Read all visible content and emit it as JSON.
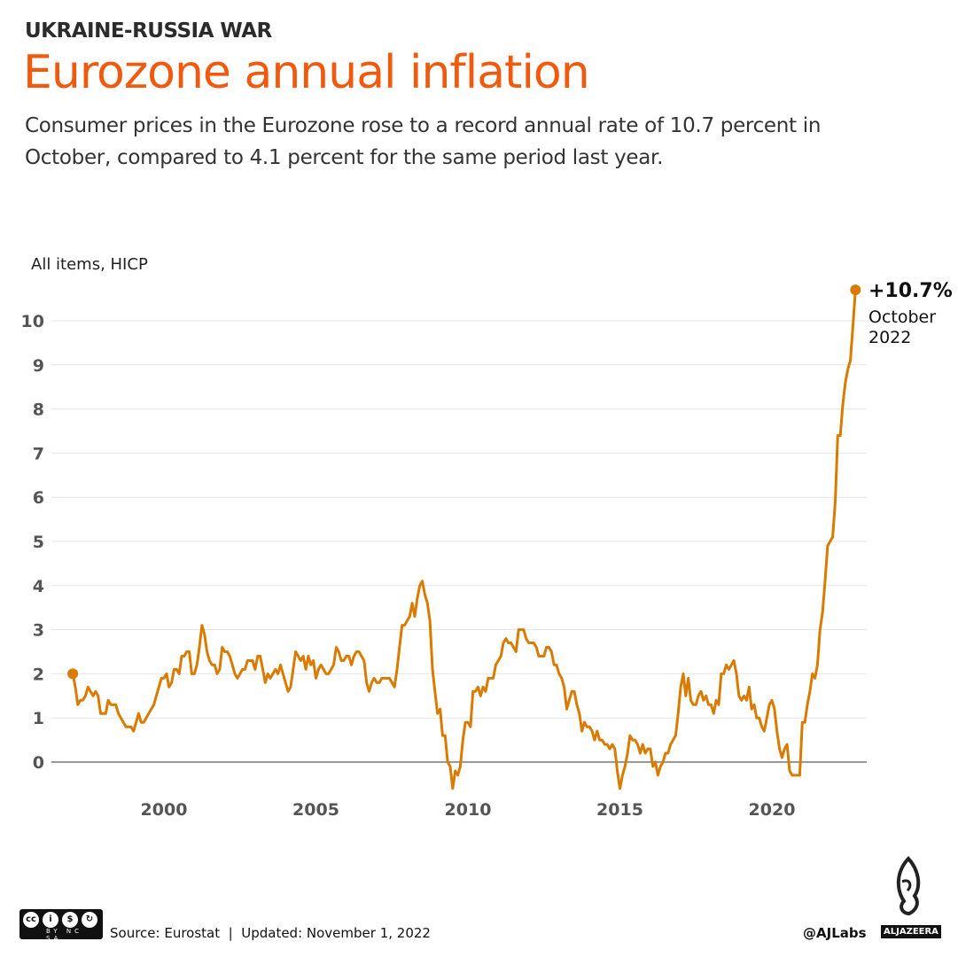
{
  "header": {
    "kicker": "UKRAINE-RUSSIA WAR",
    "title": "Eurozone annual inflation",
    "subtitle": "Consumer prices in the Eurozone rose to a record annual rate of 10.7 percent in October, compared to 4.1 percent for the same period last year."
  },
  "footer": {
    "source": "Source: Eurostat  |  Updated: November 1, 2022",
    "license_icons": [
      "cc",
      "by",
      "nc",
      "sa"
    ],
    "license_labels": "BY NC SA",
    "handle": "@AJLabs",
    "brand": "ALJAZEERA"
  },
  "colors": {
    "title": "#f05a0f",
    "line": "#d97b00",
    "grid": "#e6e6e6",
    "zero": "#999999"
  },
  "chart_data": {
    "type": "line",
    "title": "",
    "ylabel": "All items, HICP",
    "xlabel": "",
    "x_start": "1997-01",
    "x_end": "2022-10",
    "frequency": "monthly",
    "xticks": [
      "2000",
      "2005",
      "2010",
      "2015",
      "2020"
    ],
    "yticks": [
      "0",
      "1",
      "2",
      "3",
      "4",
      "5",
      "6",
      "7",
      "8",
      "9",
      "10"
    ],
    "ylim": [
      -0.7,
      11
    ],
    "grid": true,
    "annotation": {
      "value": "+10.7%",
      "month": "October",
      "year": "2022"
    },
    "series": [
      {
        "values": [
          2.0,
          1.7,
          1.3,
          1.4,
          1.4,
          1.5,
          1.7,
          1.6,
          1.5,
          1.6,
          1.5,
          1.1,
          1.1,
          1.1,
          1.4,
          1.3,
          1.3,
          1.3,
          1.1,
          1.0,
          0.9,
          0.8,
          0.8,
          0.8,
          0.7,
          0.9,
          1.1,
          0.9,
          0.9,
          1.0,
          1.1,
          1.2,
          1.3,
          1.5,
          1.7,
          1.9,
          1.9,
          2.0,
          1.7,
          1.8,
          2.1,
          2.1,
          2.0,
          2.4,
          2.4,
          2.5,
          2.5,
          2.0,
          2.0,
          2.2,
          2.6,
          3.1,
          2.9,
          2.5,
          2.3,
          2.2,
          2.2,
          2.0,
          2.1,
          2.6,
          2.5,
          2.5,
          2.4,
          2.2,
          2.0,
          1.9,
          2.0,
          2.1,
          2.1,
          2.3,
          2.3,
          2.3,
          2.1,
          2.4,
          2.4,
          2.1,
          1.8,
          2.0,
          1.9,
          2.0,
          2.1,
          2.0,
          2.2,
          2.0,
          1.8,
          1.6,
          1.7,
          2.1,
          2.5,
          2.4,
          2.3,
          2.4,
          2.1,
          2.4,
          2.2,
          2.3,
          1.9,
          2.1,
          2.2,
          2.1,
          2.0,
          2.0,
          2.1,
          2.2,
          2.6,
          2.5,
          2.3,
          2.3,
          2.4,
          2.4,
          2.2,
          2.4,
          2.5,
          2.5,
          2.4,
          2.3,
          1.8,
          1.6,
          1.8,
          1.9,
          1.8,
          1.8,
          1.9,
          1.9,
          1.9,
          1.9,
          1.8,
          1.7,
          2.1,
          2.6,
          3.1,
          3.1,
          3.2,
          3.3,
          3.6,
          3.3,
          3.7,
          4.0,
          4.1,
          3.8,
          3.6,
          3.2,
          2.1,
          1.6,
          1.1,
          1.2,
          0.6,
          0.6,
          0.0,
          -0.1,
          -0.6,
          -0.2,
          -0.3,
          -0.1,
          0.5,
          0.9,
          0.9,
          0.8,
          1.6,
          1.6,
          1.7,
          1.5,
          1.7,
          1.6,
          1.9,
          1.9,
          1.9,
          2.2,
          2.3,
          2.4,
          2.7,
          2.8,
          2.7,
          2.7,
          2.6,
          2.5,
          3.0,
          3.0,
          3.0,
          2.8,
          2.7,
          2.7,
          2.7,
          2.6,
          2.4,
          2.4,
          2.4,
          2.6,
          2.6,
          2.5,
          2.2,
          2.2,
          2.0,
          1.9,
          1.7,
          1.2,
          1.4,
          1.6,
          1.6,
          1.3,
          1.1,
          0.7,
          0.9,
          0.8,
          0.8,
          0.7,
          0.5,
          0.7,
          0.5,
          0.5,
          0.4,
          0.4,
          0.3,
          0.4,
          0.3,
          -0.2,
          -0.6,
          -0.3,
          -0.1,
          0.2,
          0.6,
          0.5,
          0.5,
          0.4,
          0.2,
          0.4,
          0.2,
          0.3,
          0.3,
          -0.1,
          0.0,
          -0.3,
          -0.1,
          0.0,
          0.2,
          0.2,
          0.4,
          0.5,
          0.6,
          1.1,
          1.7,
          2.0,
          1.5,
          1.9,
          1.4,
          1.3,
          1.3,
          1.5,
          1.6,
          1.4,
          1.5,
          1.3,
          1.3,
          1.1,
          1.4,
          1.3,
          2.0,
          2.0,
          2.2,
          2.1,
          2.2,
          2.3,
          2.0,
          1.5,
          1.4,
          1.5,
          1.4,
          1.7,
          1.2,
          1.3,
          1.0,
          1.0,
          0.8,
          0.7,
          1.0,
          1.3,
          1.4,
          1.2,
          0.7,
          0.3,
          0.1,
          0.3,
          0.4,
          -0.2,
          -0.3,
          -0.3,
          -0.3,
          -0.3,
          0.9,
          0.9,
          1.3,
          1.6,
          2.0,
          1.9,
          2.2,
          3.0,
          3.4,
          4.1,
          4.9,
          5.0,
          5.1,
          5.9,
          7.4,
          7.4,
          8.1,
          8.6,
          8.9,
          9.1,
          9.9,
          10.7
        ]
      }
    ]
  }
}
